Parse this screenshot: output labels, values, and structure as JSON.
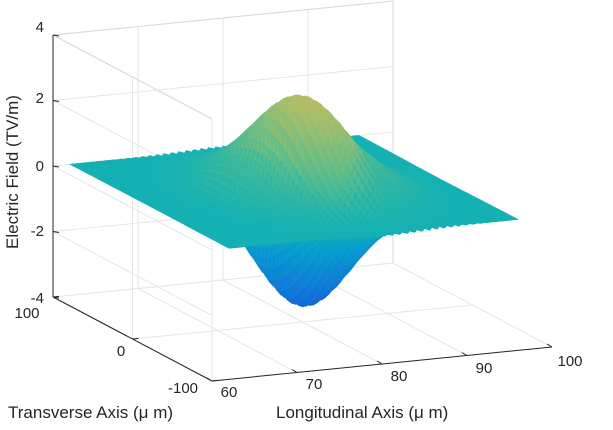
{
  "chart_data": {
    "type": "surface",
    "title": "",
    "xlabel": "Longitudinal Axis (μ m)",
    "ylabel": "Transverse Axis (μ m)",
    "zlabel": "Electric Field (TV/m)",
    "xlim": [
      60,
      100
    ],
    "ylim": [
      -100,
      100
    ],
    "zlim": [
      -4,
      4
    ],
    "x_ticks": [
      "60",
      "70",
      "80",
      "90",
      "100"
    ],
    "y_ticks": [
      "-100",
      "0",
      "100"
    ],
    "z_ticks": [
      "-4",
      "-2",
      "0",
      "2",
      "4"
    ],
    "grid": true,
    "colormap": "parula",
    "series": [
      {
        "field_peak": 2.9,
        "field_trough": -3.5,
        "center_x": 80,
        "center_y": 0
      }
    ]
  },
  "colors": {
    "grid": "#e6e6e6",
    "axis": "#262626",
    "plane": "#1fbfaa"
  }
}
